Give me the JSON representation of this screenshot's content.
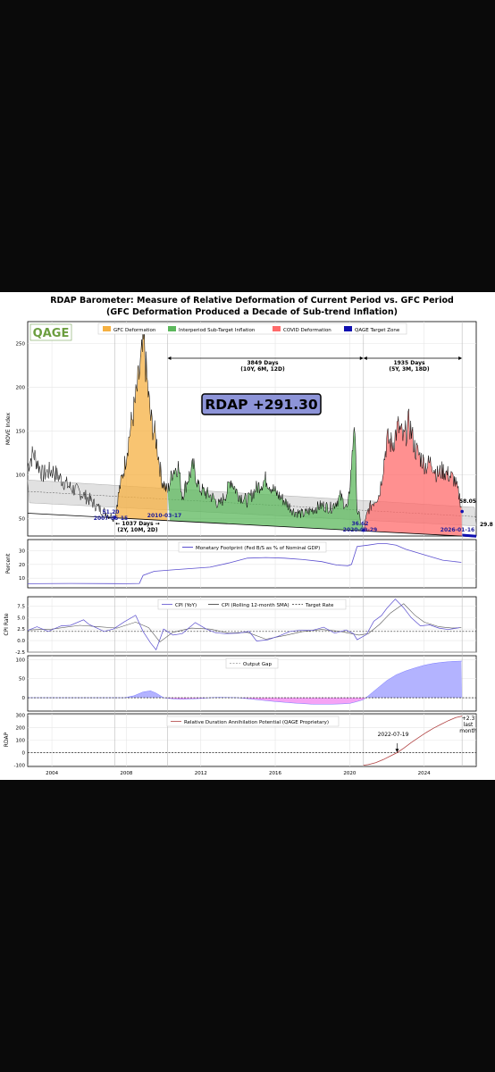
{
  "figure": {
    "title_line1": "RDAP Barometer: Measure of Relative Deformation of Current Period vs. GFC Period",
    "title_line2": "(GFC Deformation Produced a Decade of Sub-trend Inflation)",
    "logo_text": "QAGE",
    "rdap_badge": "RDAP +291.30"
  },
  "colors": {
    "gfc": "#f5b041",
    "interperiod": "#5cb85c",
    "covid": "#ff6b6b",
    "target": "#1010b0",
    "line": "#000000",
    "purple": "#5b4fcf",
    "gap_pos": "#b3b3ff",
    "gap_neg": "#f5a3f5",
    "rdap_line": "#b04040"
  },
  "chart_data": [
    {
      "type": "line",
      "panel": "MOVE Index",
      "ylabel": "MOVE Index",
      "ylim": [
        30,
        275
      ],
      "xlim": [
        2002.7,
        2026.8
      ],
      "yticks": [
        50,
        100,
        150,
        200,
        250
      ],
      "legend": [
        "GFC Deformation",
        "Interperiod Sub-Target Inflation",
        "COVID Deformation",
        "QAGE Target Zone"
      ],
      "series": [
        {
          "x": [
            2002.7,
            2003.0,
            2003.5,
            2004.0,
            2004.5,
            2005.0,
            2005.5,
            2006.0,
            2006.5,
            2007.0,
            2007.37,
            2007.6,
            2007.9,
            2008.2,
            2008.5,
            2008.8,
            2008.95,
            2009.1,
            2009.3,
            2009.6,
            2009.9,
            2010.21,
            2010.5,
            2010.8,
            2011.0,
            2011.3,
            2011.6,
            2011.9,
            2012.2,
            2012.6,
            2013.0,
            2013.4,
            2013.6,
            2014.0,
            2014.5,
            2015.0,
            2015.5,
            2016.0,
            2016.5,
            2017.0,
            2017.5,
            2018.0,
            2018.5,
            2019.0,
            2019.5,
            2019.9,
            2020.15,
            2020.25,
            2020.4,
            2020.74,
            2021.0,
            2021.3,
            2021.6,
            2022.0,
            2022.3,
            2022.6,
            2022.9,
            2023.2,
            2023.5,
            2023.8,
            2024.1,
            2024.4,
            2024.7,
            2025.0,
            2025.3,
            2025.6,
            2025.9,
            2026.04
          ],
          "y": [
            110,
            125,
            100,
            105,
            95,
            85,
            80,
            72,
            62,
            55,
            51.2,
            80,
            110,
            150,
            185,
            230,
            250,
            210,
            165,
            140,
            95,
            80,
            105,
            110,
            75,
            95,
            110,
            85,
            80,
            75,
            65,
            80,
            95,
            78,
            70,
            85,
            95,
            80,
            70,
            58,
            55,
            60,
            65,
            62,
            75,
            60,
            125,
            170,
            60,
            36.6,
            60,
            70,
            78,
            140,
            135,
            155,
            140,
            160,
            130,
            120,
            110,
            115,
            100,
            105,
            100,
            95,
            75,
            58.05
          ]
        }
      ],
      "annotations": [
        {
          "label": "51.20",
          "sub": "2007-05-15"
        },
        {
          "label": "2010-03-17"
        },
        {
          "label": "36.62",
          "sub": "2020-09-29"
        },
        {
          "label": "2026-01-16"
        },
        {
          "label": "58.05"
        },
        {
          "label": "29.8"
        },
        {
          "label": "← 1037 Days →",
          "sub": "(2Y, 10M, 2D)"
        },
        {
          "label": "3849 Days",
          "sub": "(10Y, 6M, 12D)"
        },
        {
          "label": "1935 Days",
          "sub": "(5Y, 3M, 18D)"
        }
      ]
    },
    {
      "type": "line",
      "panel": "Monetary Footprint",
      "ylabel": "Percent",
      "ylim": [
        3,
        38
      ],
      "yticks": [
        10,
        20,
        30
      ],
      "series": [
        {
          "name": "Monetary Footprint (Fed B/S as % of Nominal GDP)",
          "x": [
            2002.7,
            2005.0,
            2008.0,
            2008.7,
            2008.9,
            2009.5,
            2010.5,
            2011.5,
            2012.5,
            2013.5,
            2014.5,
            2015.5,
            2016.5,
            2017.5,
            2018.5,
            2019.3,
            2019.9,
            2020.1,
            2020.4,
            2021.0,
            2021.5,
            2022.0,
            2022.5,
            2023.0,
            2024.0,
            2025.0,
            2026.0
          ],
          "y": [
            6,
            6.2,
            6.0,
            6.2,
            12,
            15,
            16,
            17,
            18,
            21,
            24.5,
            25,
            24.5,
            23.5,
            22,
            19.5,
            19,
            20,
            33,
            34,
            35,
            35,
            34,
            31,
            27,
            23,
            21.5
          ]
        }
      ]
    },
    {
      "type": "line",
      "panel": "CPI",
      "ylabel": "CPI Rate",
      "ylim": [
        -2.5,
        9.5
      ],
      "yticks": [
        -2.5,
        0.0,
        2.5,
        5.0,
        7.5
      ],
      "series": [
        {
          "name": "CPI (YoY)",
          "x": [
            2002.7,
            2003.2,
            2003.8,
            2004.5,
            2005.0,
            2005.7,
            2006.0,
            2006.8,
            2007.3,
            2007.9,
            2008.5,
            2008.9,
            2009.3,
            2009.6,
            2010.0,
            2010.5,
            2011.0,
            2011.7,
            2012.3,
            2012.8,
            2013.3,
            2014.0,
            2014.6,
            2015.0,
            2015.6,
            2016.2,
            2016.8,
            2017.3,
            2018.0,
            2018.6,
            2019.2,
            2019.8,
            2020.2,
            2020.4,
            2020.9,
            2021.3,
            2021.7,
            2022.0,
            2022.45,
            2022.9,
            2023.3,
            2023.8,
            2024.3,
            2024.8,
            2025.3,
            2025.9
          ],
          "y": [
            2.2,
            3.0,
            2.0,
            3.2,
            3.3,
            4.5,
            3.5,
            2.0,
            2.5,
            4.1,
            5.5,
            2.0,
            -0.5,
            -2.0,
            2.5,
            1.2,
            1.5,
            3.9,
            2.5,
            1.7,
            1.5,
            1.6,
            2.0,
            -0.1,
            0.2,
            1.0,
            2.0,
            2.2,
            2.2,
            2.9,
            1.6,
            2.3,
            1.5,
            0.2,
            1.3,
            4.2,
            5.4,
            7.0,
            9.0,
            7.1,
            5.0,
            3.2,
            3.4,
            2.7,
            2.4,
            2.8
          ]
        },
        {
          "name": "CPI (Rolling 12-month SMA)",
          "x": [
            2002.7,
            2004.0,
            2005.5,
            2006.5,
            2007.5,
            2008.5,
            2009.2,
            2009.8,
            2010.5,
            2011.5,
            2012.5,
            2013.5,
            2014.5,
            2015.5,
            2016.5,
            2017.5,
            2018.5,
            2019.5,
            2020.5,
            2021.0,
            2021.6,
            2022.2,
            2022.9,
            2023.5,
            2024.0,
            2024.8,
            2025.5,
            2026.0
          ],
          "y": [
            2.3,
            2.5,
            3.3,
            3.0,
            2.7,
            4.0,
            2.8,
            -0.3,
            1.8,
            2.7,
            2.5,
            1.6,
            1.8,
            0.3,
            1.1,
            2.0,
            2.4,
            2.0,
            1.2,
            1.5,
            3.5,
            6.0,
            8.0,
            5.5,
            4.0,
            3.0,
            2.7,
            2.8
          ]
        },
        {
          "name": "Target Rate",
          "x": [
            2002.7,
            2026.8
          ],
          "y": [
            2,
            2
          ]
        }
      ]
    },
    {
      "type": "area",
      "panel": "Output Gap",
      "ylim": [
        -35,
        110
      ],
      "yticks": [
        0,
        50,
        100
      ],
      "series": [
        {
          "name": "Output Gap",
          "x": [
            2002.7,
            2007.9,
            2008.4,
            2008.9,
            2009.3,
            2009.6,
            2010.0,
            2010.5,
            2011.0,
            2011.5,
            2012.0,
            2012.5,
            2013.0,
            2014.0,
            2015.0,
            2016.0,
            2017.0,
            2018.0,
            2019.0,
            2019.6,
            2020.0,
            2020.4,
            2020.74,
            2021.0,
            2021.5,
            2022.0,
            2022.5,
            2023.0,
            2023.5,
            2024.0,
            2024.5,
            2025.0,
            2025.5,
            2026.04
          ],
          "y": [
            0,
            0,
            5,
            15,
            18,
            12,
            0,
            -3,
            -4,
            -3,
            -2,
            0,
            1,
            0,
            -5,
            -10,
            -14,
            -17,
            -17,
            -16,
            -15,
            -10,
            -5,
            5,
            25,
            45,
            60,
            70,
            78,
            85,
            90,
            93,
            95,
            96
          ]
        }
      ]
    },
    {
      "type": "line",
      "panel": "RDAP",
      "ylabel": "RDAP",
      "ylim": [
        -110,
        310
      ],
      "yticks": [
        -100,
        0,
        100,
        200,
        300
      ],
      "xticks": [
        2004,
        2008,
        2012,
        2016,
        2020,
        2024
      ],
      "series": [
        {
          "name": "Relative Duration Annihilation Potential (QAGE Proprietary)",
          "x": [
            2020.74,
            2021.0,
            2021.4,
            2021.8,
            2022.2,
            2022.55,
            2022.9,
            2023.3,
            2023.7,
            2024.1,
            2024.5,
            2024.9,
            2025.3,
            2025.7,
            2026.04
          ],
          "y": [
            -100,
            -95,
            -80,
            -55,
            -25,
            0,
            35,
            80,
            120,
            160,
            195,
            225,
            255,
            280,
            291.3
          ]
        }
      ],
      "annotations": [
        {
          "label": "2022-07-19"
        },
        {
          "label": "+2.3",
          "sub": "last month"
        }
      ]
    }
  ]
}
